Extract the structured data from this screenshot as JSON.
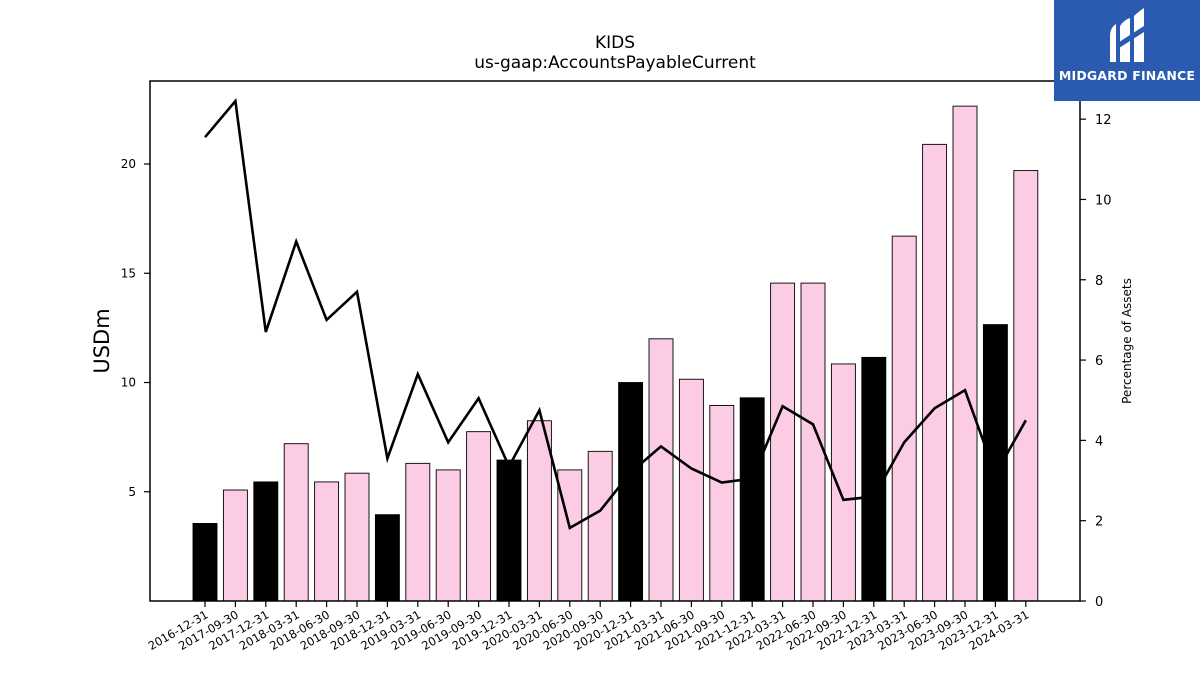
{
  "logo": {
    "text": "MIDGARD FINANCE",
    "background": "#2a5bb0"
  },
  "chart_data": {
    "type": "bar",
    "title": "KIDS",
    "subtitle": "us-gaap:AccountsPayableCurrent",
    "ylabel": "USDm",
    "y2label": "Percentage of Assets",
    "ylim": [
      0,
      23.8
    ],
    "y2lim": [
      0,
      12.95
    ],
    "yticks": [
      5,
      10,
      15,
      20
    ],
    "y2ticks": [
      0,
      2,
      4,
      6,
      8,
      10,
      12
    ],
    "categories": [
      "2016-12-31",
      "2017-09-30",
      "2017-12-31",
      "2018-03-31",
      "2018-06-30",
      "2018-09-30",
      "2018-12-31",
      "2019-03-31",
      "2019-06-30",
      "2019-09-30",
      "2019-12-31",
      "2020-03-31",
      "2020-06-30",
      "2020-09-30",
      "2020-12-31",
      "2021-03-31",
      "2021-06-30",
      "2021-09-30",
      "2021-12-31",
      "2022-03-31",
      "2022-06-30",
      "2022-09-30",
      "2022-12-31",
      "2023-03-31",
      "2023-06-30",
      "2023-09-30",
      "2023-12-31",
      "2024-03-31"
    ],
    "series": [
      {
        "kind": "bar",
        "axis": "left",
        "values": [
          3.55,
          5.08,
          5.45,
          7.2,
          5.45,
          5.85,
          3.95,
          6.3,
          6.0,
          7.75,
          6.45,
          8.25,
          6.0,
          6.85,
          10.0,
          12.0,
          10.15,
          8.95,
          9.3,
          14.55,
          14.55,
          10.85,
          11.15,
          16.7,
          20.9,
          22.65,
          12.65,
          19.7
        ],
        "colors": {
          "annual": "#000000",
          "quarterly": "#fccbe4"
        },
        "annual": [
          true,
          false,
          true,
          false,
          false,
          false,
          true,
          false,
          false,
          false,
          true,
          false,
          false,
          false,
          true,
          false,
          false,
          false,
          true,
          false,
          false,
          false,
          true,
          false,
          false,
          false,
          true,
          false
        ]
      },
      {
        "kind": "line",
        "axis": "right",
        "color": "#000000",
        "values": [
          11.55,
          12.45,
          6.7,
          8.95,
          7.0,
          7.7,
          3.55,
          5.65,
          3.95,
          5.05,
          3.35,
          4.75,
          1.82,
          2.25,
          3.2,
          3.85,
          3.3,
          2.95,
          3.05,
          4.85,
          4.4,
          2.52,
          2.6,
          3.95,
          4.8,
          5.25,
          3.15,
          4.5
        ]
      }
    ],
    "grid": false,
    "legend": "none"
  }
}
